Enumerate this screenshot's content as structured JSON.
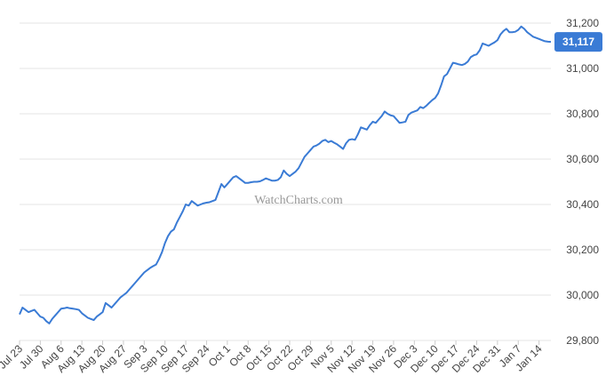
{
  "chart_data": {
    "type": "line",
    "watermark": "WatchCharts.com",
    "last_value_label": "31,117",
    "color": "#3a7bd5",
    "categories": [
      "Jul 23",
      null,
      null,
      null,
      null,
      null,
      null,
      "Jul 30",
      null,
      null,
      null,
      null,
      null,
      null,
      "Aug 6",
      null,
      null,
      null,
      null,
      null,
      null,
      "Aug 13",
      null,
      null,
      null,
      null,
      null,
      null,
      "Aug 20",
      null,
      null,
      null,
      null,
      null,
      null,
      "Aug 27",
      null,
      null,
      null,
      null,
      null,
      null,
      "Sep 3",
      null,
      null,
      null,
      null,
      null,
      null,
      "Sep 10",
      null,
      null,
      null,
      null,
      null,
      null,
      "Sep 17",
      null,
      null,
      null,
      null,
      null,
      null,
      "Sep 24",
      null,
      null,
      null,
      null,
      null,
      null,
      "Oct 1",
      null,
      null,
      null,
      null,
      null,
      null,
      "Oct 8",
      null,
      null,
      null,
      null,
      null,
      null,
      "Oct 15",
      null,
      null,
      null,
      null,
      null,
      null,
      "Oct 22",
      null,
      null,
      null,
      null,
      null,
      null,
      "Oct 29",
      null,
      null,
      null,
      null,
      null,
      null,
      "Nov 5",
      null,
      null,
      null,
      null,
      null,
      null,
      "Nov 12",
      null,
      null,
      null,
      null,
      null,
      null,
      "Nov 19",
      null,
      null,
      null,
      null,
      null,
      null,
      "Nov 26",
      null,
      null,
      null,
      null,
      null,
      null,
      "Dec 3",
      null,
      null,
      null,
      null,
      null,
      null,
      "Dec 10",
      null,
      null,
      null,
      null,
      null,
      null,
      "Dec 17",
      null,
      null,
      null,
      null,
      null,
      null,
      "Dec 24",
      null,
      null,
      null,
      null,
      null,
      null,
      "Dec 31",
      null,
      null,
      null,
      null,
      null,
      null,
      "Jan 7",
      null,
      null,
      null,
      null,
      null,
      null,
      "Jan 14",
      null,
      null,
      null,
      null
    ],
    "values": [
      29915,
      29945,
      29935,
      29925,
      29930,
      29935,
      29920,
      29905,
      29900,
      29885,
      29875,
      29895,
      29910,
      29925,
      29940,
      29942,
      29945,
      29942,
      29940,
      29938,
      29935,
      29920,
      29910,
      29900,
      29895,
      29890,
      29905,
      29915,
      29925,
      29965,
      29955,
      29945,
      29960,
      29975,
      29990,
      30000,
      30010,
      30025,
      30040,
      30055,
      30070,
      30085,
      30100,
      30110,
      30120,
      30128,
      30135,
      30160,
      30190,
      30230,
      30260,
      30280,
      30290,
      30320,
      30345,
      30370,
      30400,
      30395,
      30415,
      30405,
      30395,
      30400,
      30405,
      30408,
      30410,
      30415,
      30420,
      30455,
      30490,
      30475,
      30490,
      30505,
      30520,
      30525,
      30515,
      30505,
      30495,
      30495,
      30498,
      30500,
      30500,
      30502,
      30508,
      30515,
      30510,
      30505,
      30505,
      30508,
      30520,
      30550,
      30535,
      30525,
      30535,
      30545,
      30560,
      30585,
      30610,
      30625,
      30640,
      30655,
      30660,
      30668,
      30680,
      30685,
      30675,
      30680,
      30672,
      30665,
      30655,
      30645,
      30670,
      30685,
      30688,
      30685,
      30710,
      30740,
      30735,
      30730,
      30750,
      30765,
      30760,
      30775,
      30790,
      30810,
      30800,
      30793,
      30790,
      30775,
      30760,
      30762,
      30765,
      30795,
      30805,
      30810,
      30815,
      30830,
      30825,
      30835,
      30848,
      30860,
      30870,
      30890,
      30925,
      30965,
      30975,
      31000,
      31025,
      31022,
      31018,
      31015,
      31020,
      31030,
      31050,
      31058,
      31062,
      31080,
      31110,
      31105,
      31100,
      31108,
      31115,
      31125,
      31150,
      31165,
      31175,
      31160,
      31160,
      31162,
      31170,
      31185,
      31175,
      31160,
      31150,
      31140,
      31135,
      31130,
      31125,
      31120,
      31118,
      31117
    ],
    "ylim": [
      29800,
      31200
    ],
    "yticks": [
      {
        "value": 29800,
        "label": "29,800"
      },
      {
        "value": 30000,
        "label": "30,000"
      },
      {
        "value": 30200,
        "label": "30,200"
      },
      {
        "value": 30400,
        "label": "30,400"
      },
      {
        "value": 30600,
        "label": "30,600"
      },
      {
        "value": 30800,
        "label": "30,800"
      },
      {
        "value": 31000,
        "label": "31,000"
      },
      {
        "value": 31200,
        "label": "31,200"
      }
    ],
    "grid": true
  }
}
